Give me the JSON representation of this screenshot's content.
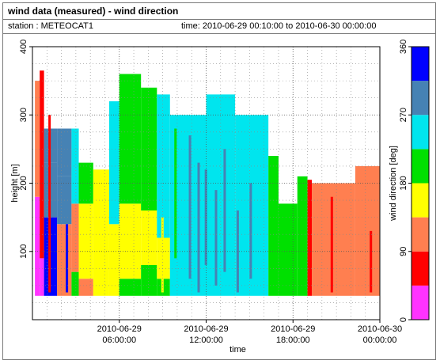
{
  "header": {
    "title": "wind data (measured) - wind direction",
    "station": "station : METEOCAT1",
    "timerange": "time: 2010-06-29 00:10:00 to 2010-06-30 00:00:00"
  },
  "chart_data": {
    "type": "heatmap",
    "xlabel": "time",
    "ylabel": "height [m]",
    "x_unit": "hours from 2010-06-29 00:00:00",
    "xlim": [
      0,
      24
    ],
    "ylim": [
      0,
      400
    ],
    "x_ticks": [
      {
        "value": 6,
        "label_date": "2010-06-29",
        "label_time": "06:00:00"
      },
      {
        "value": 12,
        "label_date": "2010-06-29",
        "label_time": "12:00:00"
      },
      {
        "value": 18,
        "label_date": "2010-06-29",
        "label_time": "18:00:00"
      },
      {
        "value": 24,
        "label_date": "2010-06-30",
        "label_time": "00:00:00"
      }
    ],
    "y_ticks": [
      100,
      200,
      300,
      400
    ],
    "grid": true,
    "colorbar": {
      "label": "wind direction [deg]",
      "range": [
        0,
        360
      ],
      "ticks": [
        0,
        90,
        180,
        270,
        360
      ],
      "bins": [
        {
          "from": 0,
          "to": 45,
          "color": "#ff33ff"
        },
        {
          "from": 45,
          "to": 90,
          "color": "#ff0000"
        },
        {
          "from": 90,
          "to": 135,
          "color": "#ff7f50"
        },
        {
          "from": 135,
          "to": 180,
          "color": "#ffff00"
        },
        {
          "from": 180,
          "to": 225,
          "color": "#00e000"
        },
        {
          "from": 225,
          "to": 270,
          "color": "#00e5ee"
        },
        {
          "from": 270,
          "to": 315,
          "color": "#4682b4"
        },
        {
          "from": 315,
          "to": 360,
          "color": "#0000ff"
        }
      ]
    },
    "segments": [
      {
        "t0": 0.17,
        "t1": 0.5,
        "top": 350,
        "h0": 35,
        "bands": [
          [
            0,
            180,
            "#ff33ff"
          ],
          [
            180,
            400,
            "#ff7f50"
          ]
        ]
      },
      {
        "t0": 0.5,
        "t1": 0.8,
        "top": 365,
        "h0": 35,
        "bands": [
          [
            0,
            90,
            "#ff33ff"
          ],
          [
            90,
            400,
            "#ff0000"
          ]
        ]
      },
      {
        "t0": 0.8,
        "t1": 1.7,
        "top": 280,
        "h0": 35,
        "bands": [
          [
            0,
            150,
            "#0000ff"
          ],
          [
            150,
            230,
            "#4682b4"
          ],
          [
            230,
            400,
            "#4682b4"
          ]
        ]
      },
      {
        "t0": 1.7,
        "t1": 2.7,
        "top": 280,
        "h0": 35,
        "bands": [
          [
            0,
            140,
            "#ff7f50"
          ],
          [
            140,
            210,
            "#4682b4"
          ],
          [
            210,
            400,
            "#4682b4"
          ]
        ]
      },
      {
        "t0": 2.7,
        "t1": 3.2,
        "top": 280,
        "h0": 35,
        "bands": [
          [
            0,
            70,
            "#00e000"
          ],
          [
            70,
            170,
            "#ff7f50"
          ],
          [
            170,
            400,
            "#00e5ee"
          ]
        ]
      },
      {
        "t0": 3.2,
        "t1": 4.2,
        "top": 230,
        "h0": 35,
        "bands": [
          [
            0,
            60,
            "#ff7f50"
          ],
          [
            60,
            170,
            "#ffff00"
          ],
          [
            170,
            400,
            "#00e000"
          ]
        ]
      },
      {
        "t0": 4.2,
        "t1": 5.3,
        "top": 220,
        "h0": 35,
        "bands": [
          [
            0,
            400,
            "#ffff00"
          ]
        ]
      },
      {
        "t0": 5.3,
        "t1": 6.0,
        "top": 320,
        "h0": 35,
        "bands": [
          [
            0,
            140,
            "#ffff00"
          ],
          [
            140,
            400,
            "#00e5ee"
          ]
        ]
      },
      {
        "t0": 6.0,
        "t1": 7.5,
        "top": 360,
        "h0": 35,
        "bands": [
          [
            0,
            60,
            "#00e000"
          ],
          [
            60,
            170,
            "#ffff00"
          ],
          [
            170,
            400,
            "#00e000"
          ]
        ]
      },
      {
        "t0": 7.5,
        "t1": 8.6,
        "top": 340,
        "h0": 35,
        "bands": [
          [
            0,
            80,
            "#00e000"
          ],
          [
            80,
            160,
            "#ffff00"
          ],
          [
            160,
            400,
            "#00e000"
          ]
        ]
      },
      {
        "t0": 8.6,
        "t1": 9.5,
        "top": 330,
        "h0": 35,
        "bands": [
          [
            0,
            60,
            "#00e000"
          ],
          [
            60,
            120,
            "#ffff00"
          ],
          [
            120,
            400,
            "#00e5ee"
          ]
        ]
      },
      {
        "t0": 9.5,
        "t1": 12.0,
        "top": 300,
        "h0": 35,
        "bands": [
          [
            0,
            400,
            "#00e5ee"
          ]
        ]
      },
      {
        "t0": 12.0,
        "t1": 14.0,
        "top": 330,
        "h0": 35,
        "bands": [
          [
            0,
            400,
            "#00e5ee"
          ]
        ]
      },
      {
        "t0": 14.0,
        "t1": 16.3,
        "top": 300,
        "h0": 35,
        "bands": [
          [
            0,
            400,
            "#00e5ee"
          ]
        ]
      },
      {
        "t0": 16.3,
        "t1": 17.0,
        "top": 240,
        "h0": 35,
        "bands": [
          [
            0,
            400,
            "#00e000"
          ]
        ]
      },
      {
        "t0": 17.0,
        "t1": 18.3,
        "top": 170,
        "h0": 35,
        "bands": [
          [
            0,
            400,
            "#00e000"
          ]
        ]
      },
      {
        "t0": 18.3,
        "t1": 19.0,
        "top": 210,
        "h0": 35,
        "bands": [
          [
            0,
            400,
            "#00e000"
          ]
        ]
      },
      {
        "t0": 19.0,
        "t1": 19.3,
        "top": 205,
        "h0": 35,
        "bands": [
          [
            0,
            400,
            "#ff0000"
          ]
        ]
      },
      {
        "t0": 19.3,
        "t1": 22.3,
        "top": 200,
        "h0": 35,
        "bands": [
          [
            0,
            400,
            "#ff7f50"
          ]
        ]
      },
      {
        "t0": 22.3,
        "t1": 24.0,
        "top": 225,
        "h0": 35,
        "bands": [
          [
            0,
            400,
            "#ff7f50"
          ]
        ]
      }
    ],
    "stripes": [
      {
        "t": 10.8,
        "y0": 60,
        "y1": 270,
        "color": "#4682b4"
      },
      {
        "t": 11.4,
        "y0": 40,
        "y1": 230,
        "color": "#4682b4"
      },
      {
        "t": 11.9,
        "y0": 80,
        "y1": 220,
        "color": "#4682b4"
      },
      {
        "t": 12.6,
        "y0": 50,
        "y1": 190,
        "color": "#4682b4"
      },
      {
        "t": 13.2,
        "y0": 70,
        "y1": 250,
        "color": "#4682b4"
      },
      {
        "t": 14.1,
        "y0": 40,
        "y1": 160,
        "color": "#4682b4"
      },
      {
        "t": 15.0,
        "y0": 60,
        "y1": 200,
        "color": "#4682b4"
      },
      {
        "t": 9.8,
        "y0": 90,
        "y1": 280,
        "color": "#00e000"
      },
      {
        "t": 8.9,
        "y0": 40,
        "y1": 150,
        "color": "#ffff00"
      },
      {
        "t": 20.6,
        "y0": 40,
        "y1": 180,
        "color": "#ff0000"
      },
      {
        "t": 23.3,
        "y0": 40,
        "y1": 130,
        "color": "#ff0000"
      },
      {
        "t": 2.3,
        "y0": 40,
        "y1": 140,
        "color": "#0000ff"
      },
      {
        "t": 1.1,
        "y0": 40,
        "y1": 300,
        "color": "#ff0000"
      }
    ]
  }
}
